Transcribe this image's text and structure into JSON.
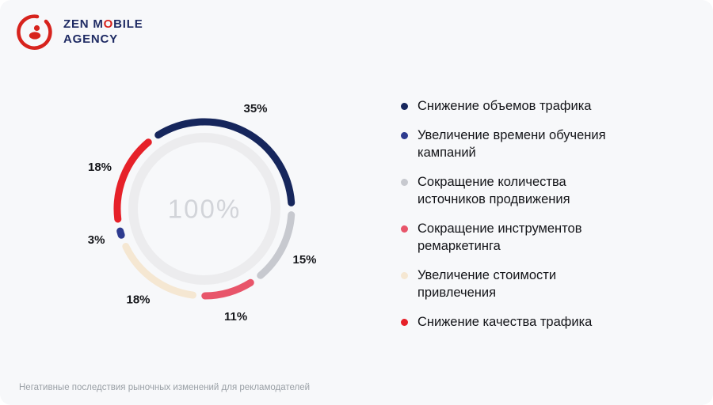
{
  "logo": {
    "line1_pre": "ZEN M",
    "line1_o": "O",
    "line1_post": "BILE",
    "line2": "AGENCY",
    "brand_red": "#d7231d",
    "brand_navy": "#1e2a63"
  },
  "chart_data": {
    "type": "donut",
    "title": "Негативные последствия рыночных изменений для рекламодателей",
    "center_label": "100%",
    "start_angle_deg": -36,
    "gap_deg": 8,
    "segments": [
      {
        "label": "Снижение объемов трафика",
        "value": 35,
        "color": "#16265c"
      },
      {
        "label": "Сокращение количества источников продвижения",
        "value": 15,
        "color": "#c7c9cf"
      },
      {
        "label": "Сокращение инструментов ремаркетинга",
        "value": 11,
        "color": "#e8556a"
      },
      {
        "label": "Увеличение стоимости привлечения",
        "value": 18,
        "color": "#f5e7d2"
      },
      {
        "label": "Увеличение времени обучения кампаний",
        "value": 3,
        "color": "#2e3b8f"
      },
      {
        "label": "Снижение качества трафика",
        "value": 18,
        "color": "#e62129"
      }
    ]
  },
  "legend": {
    "items": [
      {
        "label": "Снижение объемов трафика",
        "color": "#16265c"
      },
      {
        "label": "Увеличение времени обучения кампаний",
        "color": "#2e3b8f"
      },
      {
        "label": "Сокращение количества источников продвижения",
        "color": "#c7c9cf"
      },
      {
        "label": "Сокращение инструментов ремаркетинга",
        "color": "#e8556a"
      },
      {
        "label": "Увеличение стоимости привлечения",
        "color": "#f5e7d2"
      },
      {
        "label": "Снижение качества трафика",
        "color": "#e62129"
      }
    ]
  },
  "caption": {
    "text": "Негативные последствия рыночных изменений для рекламодателей"
  }
}
